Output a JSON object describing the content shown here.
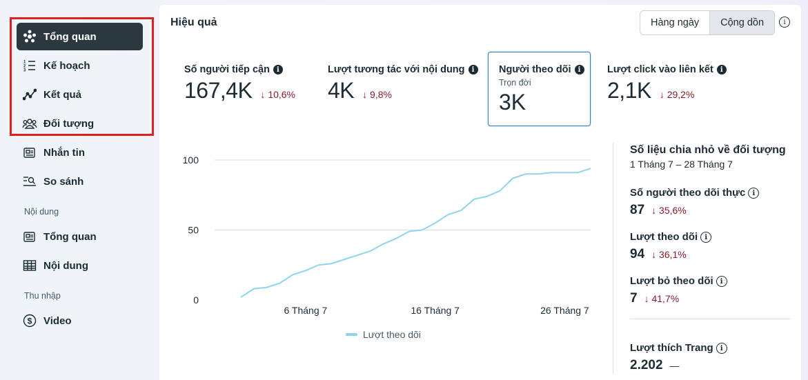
{
  "sidebar": {
    "items": [
      {
        "label": "Tổng quan",
        "icon": "overview-icon"
      },
      {
        "label": "Kế hoạch",
        "icon": "plan-list-icon"
      },
      {
        "label": "Kết quả",
        "icon": "results-chart-icon"
      },
      {
        "label": "Đối tượng",
        "icon": "audience-people-icon"
      },
      {
        "label": "Nhắn tin",
        "icon": "message-card-icon"
      },
      {
        "label": "So sánh",
        "icon": "compare-icon"
      }
    ],
    "section_content": "Nội dung",
    "content_items": [
      {
        "label": "Tổng quan",
        "icon": "content-overview-icon"
      },
      {
        "label": "Nội dung",
        "icon": "table-icon"
      }
    ],
    "section_income": "Thu nhập",
    "income_items": [
      {
        "label": "Video",
        "icon": "dollar-icon"
      }
    ]
  },
  "panel": {
    "title": "Hiệu quả",
    "toggle": {
      "daily": "Hàng ngày",
      "cumulative": "Cộng dồn",
      "selected": "Cộng dồn"
    }
  },
  "metrics": [
    {
      "label": "Số người tiếp cận",
      "value": "167,4K",
      "change": "10,6%"
    },
    {
      "label": "Lượt tương tác với nội dung",
      "value": "4K",
      "change": "9,8%"
    },
    {
      "label": "Người theo dõi",
      "sublabel": "Trọn đời",
      "value": "3K"
    },
    {
      "label": "Lượt click vào liên kết",
      "value": "2,1K",
      "change": "29,2%"
    }
  ],
  "chart_data": {
    "type": "line",
    "x_ticks": [
      "6 Tháng 7",
      "16 Tháng 7",
      "26 Tháng 7"
    ],
    "y_ticks": [
      0,
      50,
      100
    ],
    "ylim": [
      0,
      100
    ],
    "grid": true,
    "legend": "bottom",
    "series": [
      {
        "name": "Lượt theo dõi",
        "color": "#8fd3f0",
        "x": [
          1,
          2,
          3,
          4,
          5,
          6,
          7,
          8,
          9,
          10,
          11,
          12,
          13,
          14,
          15,
          16,
          17,
          18,
          19,
          20,
          21,
          22,
          23,
          24,
          25,
          26,
          27,
          28
        ],
        "values": [
          2,
          8,
          9,
          12,
          18,
          21,
          25,
          26,
          29,
          32,
          35,
          40,
          44,
          49,
          50,
          55,
          61,
          64,
          72,
          74,
          78,
          87,
          90,
          90,
          91,
          91,
          91,
          94
        ]
      }
    ]
  },
  "breakdown": {
    "title": "Số liệu chia nhỏ về đối tượng",
    "date_range": "1 Tháng 7 – 28 Tháng 7",
    "items": [
      {
        "label": "Số người theo dõi thực",
        "value": "87",
        "change": "35,6%"
      },
      {
        "label": "Lượt theo dõi",
        "value": "94",
        "change": "36,1%"
      },
      {
        "label": "Lượt bỏ theo dõi",
        "value": "7",
        "change": "41,7%"
      },
      {
        "label": "Lượt thích Trang",
        "value": "2.202",
        "change": "—"
      }
    ]
  },
  "colors": {
    "down": "#8a1c2a",
    "active_nav": "#2b3840",
    "line": "#8fd3f0",
    "highlight": "#e01e1e"
  }
}
